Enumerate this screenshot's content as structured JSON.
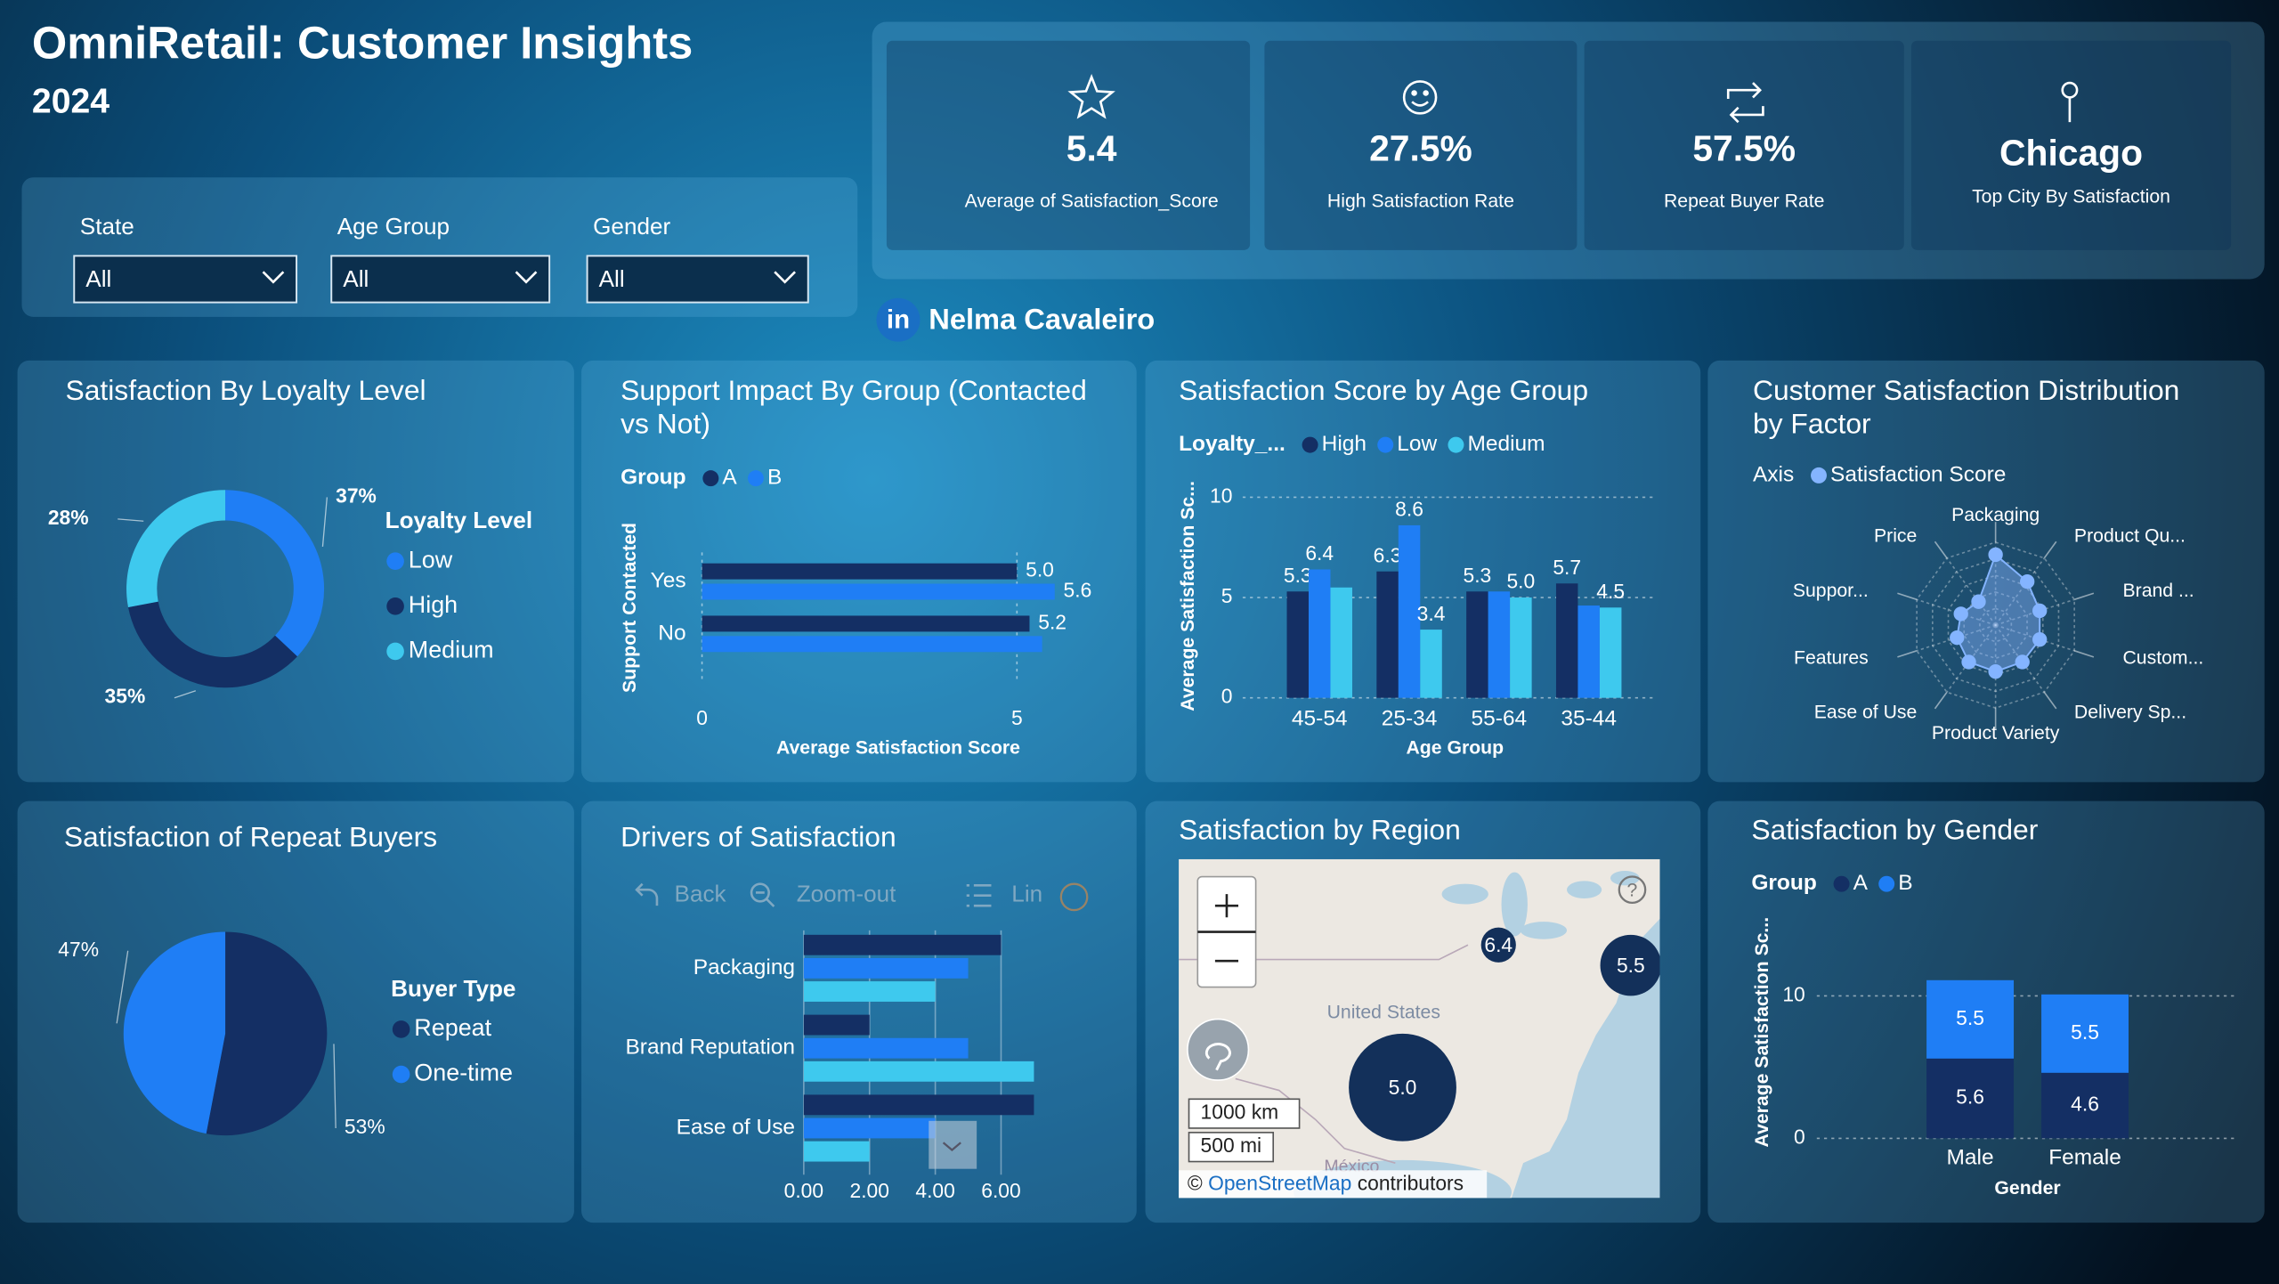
{
  "header": {
    "title": "OmniRetail: Customer Insights",
    "subtitle": "2024"
  },
  "filters": [
    {
      "label": "State",
      "value": "All"
    },
    {
      "label": "Age Group",
      "value": "All"
    },
    {
      "label": "Gender",
      "value": "All"
    }
  ],
  "kpis": [
    {
      "value": "5.4",
      "label": "Average of Satisfaction_Score"
    },
    {
      "value": "27.5%",
      "label": "High Satisfaction Rate"
    },
    {
      "value": "57.5%",
      "label": "Repeat Buyer Rate"
    },
    {
      "value": "Chicago",
      "label": "Top City By Satisfaction"
    }
  ],
  "author": {
    "icon": "in",
    "name": "Nelma Cavaleiro"
  },
  "chart_data": [
    {
      "type": "donut",
      "title": "Satisfaction By Loyalty Level",
      "legend_title": "Loyalty Level",
      "categories": [
        "Low",
        "High",
        "Medium"
      ],
      "values": [
        37,
        35,
        28
      ],
      "value_labels": [
        "37%",
        "35%",
        "28%"
      ],
      "colors": [
        "#1f7ef5",
        "#142f64",
        "#3ec9ee"
      ]
    },
    {
      "type": "hbar",
      "title": "Support Impact By Group (Contacted vs Not)",
      "legend_title": "Group",
      "categories": [
        "Yes",
        "No"
      ],
      "series": [
        {
          "name": "A",
          "color": "#142f64",
          "values": [
            5,
            5.2
          ],
          "value_labels": [
            "5.0",
            "5.2"
          ]
        },
        {
          "name": "B",
          "color": "#1f7ef5",
          "values": [
            5.6,
            5.4
          ],
          "value_labels": [
            "5.6",
            null
          ]
        }
      ],
      "xlabel": "Average Satisfaction Score",
      "ylabel": "Support Contacted",
      "xlim": [
        0,
        6
      ],
      "xticks": [
        0,
        5
      ],
      "grid": true
    },
    {
      "type": "bar",
      "title": "Satisfaction Score by Age Group",
      "legend_title": "Loyalty_...",
      "categories": [
        "45-54",
        "25-34",
        "55-64",
        "35-44"
      ],
      "series": [
        {
          "name": "High",
          "color": "#142f64",
          "values": [
            5.3,
            6.3,
            5.3,
            5.7
          ]
        },
        {
          "name": "Low",
          "color": "#1f7ef5",
          "values": [
            6.4,
            8.6,
            5.3,
            4.6
          ],
          "value_labels": [
            "6.4",
            "8.6",
            null,
            null
          ]
        },
        {
          "name": "Medium",
          "color": "#3ec9ee",
          "values": [
            5.5,
            3.4,
            5,
            4.5
          ],
          "value_labels": [
            null,
            "3.4",
            "5.0",
            "4.5"
          ]
        }
      ],
      "xlabel": "Age Group",
      "ylabel": "Average Satisfaction Sc...",
      "ylim": [
        0,
        10
      ],
      "yticks": [
        0,
        5,
        10
      ],
      "grid": true
    },
    {
      "type": "radar",
      "title": "Customer Satisfaction Distribution by Factor",
      "legend_title": "Axis",
      "categories": [
        "Packaging",
        "Product Qu...",
        "Brand ...",
        "Custom...",
        "Delivery Sp...",
        "Product Variety",
        "Ease of Use",
        "Features",
        "Suppor...",
        "Price"
      ],
      "series": [
        {
          "name": "Satisfaction Score",
          "color": "#84b4ff",
          "values": [
            8.5,
            6.5,
            5.6,
            5.6,
            5.5,
            5.6,
            5.5,
            4.9,
            4.4,
            3.5
          ]
        }
      ],
      "rlim": [
        0,
        10
      ]
    },
    {
      "type": "pie",
      "title": "Satisfaction of Repeat Buyers",
      "legend_title": "Buyer Type",
      "categories": [
        "Repeat",
        "One-time"
      ],
      "values": [
        53,
        47
      ],
      "value_labels": [
        "53%",
        "47%"
      ],
      "colors": [
        "#142f64",
        "#1f7ef5"
      ]
    },
    {
      "type": "hbar",
      "title": "Drivers of Satisfaction",
      "toolbar": [
        "Back",
        "Zoom-out",
        "Lin"
      ],
      "categories": [
        "Packaging",
        "Brand Reputation",
        "Ease of Use"
      ],
      "series": [
        {
          "color": "#142f64",
          "values": [
            6,
            2,
            7
          ]
        },
        {
          "color": "#1f7ef5",
          "values": [
            5,
            5,
            4
          ]
        },
        {
          "color": "#3ec9ee",
          "values": [
            4,
            7,
            2
          ]
        }
      ],
      "xlim": [
        0,
        8
      ],
      "xticks": [
        {
          "value": 0,
          "label": "0.00"
        },
        {
          "value": 2,
          "label": "2.00"
        },
        {
          "value": 4,
          "label": "4.00"
        },
        {
          "value": 6,
          "label": "6.00"
        }
      ],
      "grid": true
    },
    {
      "type": "map",
      "title": "Satisfaction by Region",
      "values": [
        6.4,
        5.5,
        5
      ],
      "value_labels": [
        "6.4",
        "5.5",
        "5.0"
      ],
      "help_icon": "?",
      "place_labels": [
        "United States",
        "México"
      ],
      "scale_labels": [
        "1000 km",
        "500 mi"
      ],
      "attribution": {
        "prefix": "©",
        "link": "OpenStreetMap",
        "suffix": "contributors"
      }
    },
    {
      "type": "stacked",
      "title": "Satisfaction by Gender",
      "legend_title": "Group",
      "categories": [
        "Male",
        "Female"
      ],
      "series": [
        {
          "name": "A",
          "color": "#142f64",
          "values": [
            5.6,
            4.6
          ]
        },
        {
          "name": "B",
          "color": "#1f7ef5",
          "values": [
            5.5,
            5.5
          ]
        }
      ],
      "xlabel": "Gender",
      "ylabel": "Average Satisfaction Sc...",
      "ylim": [
        0,
        14
      ],
      "yticks": [
        0,
        10
      ],
      "grid": true
    }
  ]
}
